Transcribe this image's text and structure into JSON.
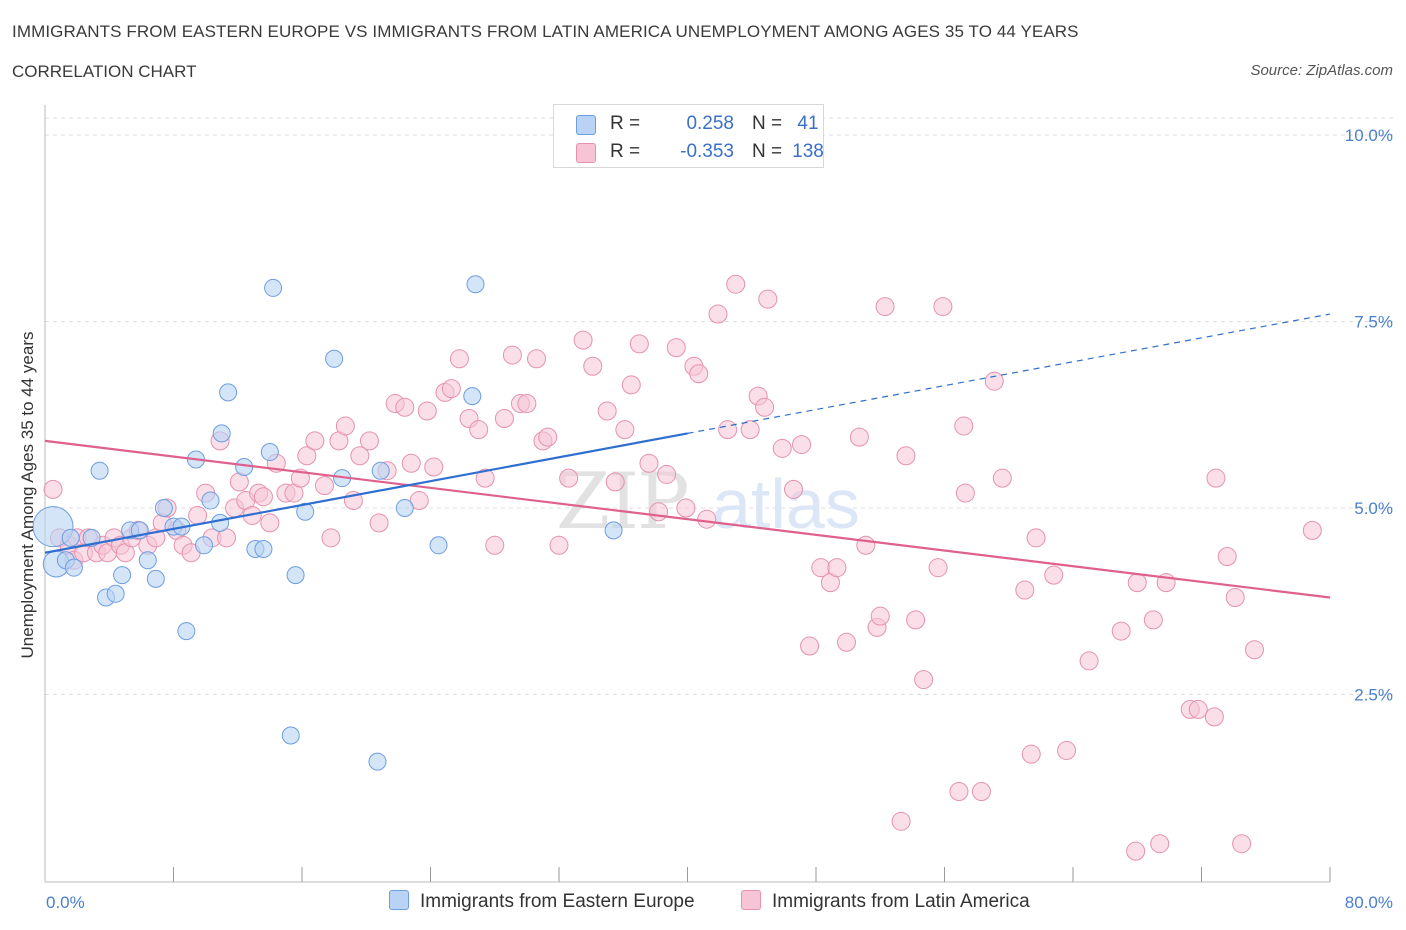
{
  "header": {
    "title": "IMMIGRANTS FROM EASTERN EUROPE VS IMMIGRANTS FROM LATIN AMERICA UNEMPLOYMENT AMONG AGES 35 TO 44 YEARS",
    "subtitle": "CORRELATION CHART",
    "source": "Source: ZipAtlas.com"
  },
  "watermark": "ZIPatlas",
  "legend": {
    "r_label": "R =",
    "n_label": "N =",
    "rows": [
      {
        "series": "Immigrants from Eastern Europe",
        "r": "0.258",
        "n": "41"
      },
      {
        "series": "Immigrants from Latin America",
        "r": "-0.353",
        "n": "138"
      }
    ]
  },
  "colors": {
    "blue_fill": "#b8d3f3",
    "blue_stroke": "#6d9ee0",
    "blue_line": "#2f6fd0",
    "pink_fill": "#f6c4d5",
    "pink_stroke": "#e691b1",
    "pink_line": "#e0608c",
    "axis_text": "#4a7fd0",
    "grid": "#dcdcdc"
  },
  "chart_data": {
    "type": "scatter",
    "title": "IMMIGRANTS FROM EASTERN EUROPE VS IMMIGRANTS FROM LATIN AMERICA UNEMPLOYMENT AMONG AGES 35 TO 44 YEARS",
    "xlabel": "",
    "ylabel": "Unemployment Among Ages 35 to 44 years",
    "xlim": [
      0,
      80
    ],
    "ylim": [
      0,
      10.3
    ],
    "x_tick_labels": [
      "0.0%",
      "80.0%"
    ],
    "y_ticks": [
      2.5,
      5.0,
      7.5,
      10.0
    ],
    "y_tick_labels": [
      "2.5%",
      "5.0%",
      "7.5%",
      "10.0%"
    ],
    "grid": "horizontal dashed",
    "legend_position": "top-center",
    "series": [
      {
        "name": "Immigrants from Eastern Europe",
        "color": "blue",
        "points": [
          [
            0.5,
            4.75
          ],
          [
            0.7,
            4.25
          ],
          [
            1.3,
            4.3
          ],
          [
            1.6,
            4.6
          ],
          [
            1.8,
            4.2
          ],
          [
            2.9,
            4.6
          ],
          [
            3.4,
            5.5
          ],
          [
            3.8,
            3.8
          ],
          [
            4.4,
            3.85
          ],
          [
            4.8,
            4.1
          ],
          [
            5.3,
            4.7
          ],
          [
            5.9,
            4.7
          ],
          [
            6.4,
            4.3
          ],
          [
            6.9,
            4.05
          ],
          [
            7.4,
            5.0
          ],
          [
            8.0,
            4.75
          ],
          [
            8.5,
            4.75
          ],
          [
            8.8,
            3.35
          ],
          [
            9.4,
            5.65
          ],
          [
            9.9,
            4.5
          ],
          [
            10.3,
            5.1
          ],
          [
            11.0,
            6.0
          ],
          [
            11.4,
            6.55
          ],
          [
            12.4,
            5.55
          ],
          [
            13.1,
            4.45
          ],
          [
            13.6,
            4.45
          ],
          [
            14.0,
            5.75
          ],
          [
            14.2,
            7.95
          ],
          [
            15.3,
            1.95
          ],
          [
            15.6,
            4.1
          ],
          [
            16.2,
            4.95
          ],
          [
            18.0,
            7.0
          ],
          [
            18.5,
            5.4
          ],
          [
            20.7,
            1.6
          ],
          [
            20.9,
            5.5
          ],
          [
            22.4,
            5.0
          ],
          [
            24.5,
            4.5
          ],
          [
            26.6,
            6.5
          ],
          [
            26.8,
            8.0
          ],
          [
            35.4,
            4.7
          ],
          [
            10.9,
            4.8
          ]
        ],
        "sizes": {
          "0.5": "large",
          "0.7": "large"
        },
        "trend": {
          "x": [
            0,
            40
          ],
          "y": [
            4.4,
            6.0
          ],
          "dashed_to": [
            80,
            7.6
          ]
        }
      },
      {
        "name": "Immigrants from Latin America",
        "color": "pink",
        "points": [
          [
            0.5,
            5.25
          ],
          [
            0.9,
            4.6
          ],
          [
            1.5,
            4.5
          ],
          [
            1.8,
            4.3
          ],
          [
            2.0,
            4.6
          ],
          [
            2.4,
            4.4
          ],
          [
            2.7,
            4.6
          ],
          [
            3.2,
            4.4
          ],
          [
            3.6,
            4.5
          ],
          [
            3.9,
            4.4
          ],
          [
            4.3,
            4.6
          ],
          [
            4.7,
            4.5
          ],
          [
            5.0,
            4.4
          ],
          [
            5.4,
            4.6
          ],
          [
            5.8,
            4.7
          ],
          [
            6.4,
            4.5
          ],
          [
            6.9,
            4.6
          ],
          [
            7.3,
            4.8
          ],
          [
            7.6,
            5.0
          ],
          [
            8.2,
            4.7
          ],
          [
            8.6,
            4.5
          ],
          [
            9.1,
            4.4
          ],
          [
            9.5,
            4.9
          ],
          [
            10.0,
            5.2
          ],
          [
            10.4,
            4.6
          ],
          [
            10.9,
            5.9
          ],
          [
            11.3,
            4.6
          ],
          [
            11.8,
            5.0
          ],
          [
            12.1,
            5.35
          ],
          [
            12.5,
            5.1
          ],
          [
            12.9,
            4.9
          ],
          [
            13.3,
            5.2
          ],
          [
            13.6,
            5.15
          ],
          [
            14.0,
            4.8
          ],
          [
            14.4,
            5.6
          ],
          [
            15.0,
            5.2
          ],
          [
            15.5,
            5.2
          ],
          [
            15.9,
            5.4
          ],
          [
            16.3,
            5.7
          ],
          [
            16.8,
            5.9
          ],
          [
            17.4,
            5.3
          ],
          [
            17.8,
            4.6
          ],
          [
            18.3,
            5.9
          ],
          [
            18.7,
            6.1
          ],
          [
            19.2,
            5.1
          ],
          [
            19.6,
            5.7
          ],
          [
            20.2,
            5.9
          ],
          [
            20.8,
            4.8
          ],
          [
            21.3,
            5.5
          ],
          [
            21.8,
            6.4
          ],
          [
            22.4,
            6.35
          ],
          [
            22.8,
            5.6
          ],
          [
            23.3,
            5.1
          ],
          [
            23.8,
            6.3
          ],
          [
            24.2,
            5.55
          ],
          [
            24.9,
            6.55
          ],
          [
            25.3,
            6.6
          ],
          [
            25.8,
            7.0
          ],
          [
            26.4,
            6.2
          ],
          [
            27.0,
            6.05
          ],
          [
            27.4,
            5.4
          ],
          [
            28.0,
            4.5
          ],
          [
            28.6,
            6.2
          ],
          [
            29.1,
            7.05
          ],
          [
            29.6,
            6.4
          ],
          [
            30.0,
            6.4
          ],
          [
            30.6,
            7.0
          ],
          [
            31.0,
            5.9
          ],
          [
            31.3,
            5.95
          ],
          [
            32.0,
            4.5
          ],
          [
            32.6,
            5.4
          ],
          [
            33.5,
            7.25
          ],
          [
            34.1,
            6.9
          ],
          [
            35.0,
            6.3
          ],
          [
            35.5,
            5.35
          ],
          [
            36.1,
            6.05
          ],
          [
            36.5,
            6.65
          ],
          [
            37.0,
            7.2
          ],
          [
            37.6,
            5.6
          ],
          [
            38.2,
            4.95
          ],
          [
            38.7,
            5.45
          ],
          [
            39.3,
            7.15
          ],
          [
            39.9,
            5.0
          ],
          [
            40.4,
            6.9
          ],
          [
            40.7,
            6.8
          ],
          [
            41.2,
            4.85
          ],
          [
            41.9,
            7.6
          ],
          [
            42.5,
            6.05
          ],
          [
            43.0,
            8.0
          ],
          [
            43.9,
            6.05
          ],
          [
            44.4,
            6.5
          ],
          [
            44.8,
            6.35
          ],
          [
            45.0,
            7.8
          ],
          [
            45.9,
            5.8
          ],
          [
            46.6,
            5.25
          ],
          [
            47.1,
            5.85
          ],
          [
            47.6,
            3.15
          ],
          [
            48.3,
            4.2
          ],
          [
            48.9,
            4.0
          ],
          [
            49.3,
            4.2
          ],
          [
            49.9,
            3.2
          ],
          [
            50.7,
            5.95
          ],
          [
            51.1,
            4.5
          ],
          [
            51.8,
            3.4
          ],
          [
            52.0,
            3.55
          ],
          [
            52.3,
            7.7
          ],
          [
            53.3,
            0.8
          ],
          [
            53.6,
            5.7
          ],
          [
            54.2,
            3.5
          ],
          [
            54.7,
            2.7
          ],
          [
            55.6,
            4.2
          ],
          [
            55.9,
            7.7
          ],
          [
            56.9,
            1.2
          ],
          [
            57.2,
            6.1
          ],
          [
            57.3,
            5.2
          ],
          [
            58.3,
            1.2
          ],
          [
            59.1,
            6.7
          ],
          [
            59.6,
            5.4
          ],
          [
            61.0,
            3.9
          ],
          [
            61.4,
            1.7
          ],
          [
            61.7,
            4.6
          ],
          [
            62.8,
            4.1
          ],
          [
            63.6,
            1.75
          ],
          [
            65.0,
            2.95
          ],
          [
            67.0,
            3.35
          ],
          [
            67.9,
            0.4
          ],
          [
            68.0,
            4.0
          ],
          [
            69.0,
            3.5
          ],
          [
            69.4,
            0.5
          ],
          [
            69.8,
            4.0
          ],
          [
            71.3,
            2.3
          ],
          [
            71.8,
            2.3
          ],
          [
            72.8,
            2.2
          ],
          [
            72.9,
            5.4
          ],
          [
            73.6,
            4.35
          ],
          [
            74.1,
            3.8
          ],
          [
            74.5,
            0.5
          ],
          [
            75.3,
            3.1
          ],
          [
            78.9,
            4.7
          ]
        ],
        "trend": {
          "x": [
            0,
            80
          ],
          "y": [
            5.9,
            3.8
          ]
        }
      }
    ]
  },
  "bottom_legend": [
    {
      "label": "Immigrants from Eastern Europe",
      "color": "blue"
    },
    {
      "label": "Immigrants from Latin America",
      "color": "pink"
    }
  ]
}
